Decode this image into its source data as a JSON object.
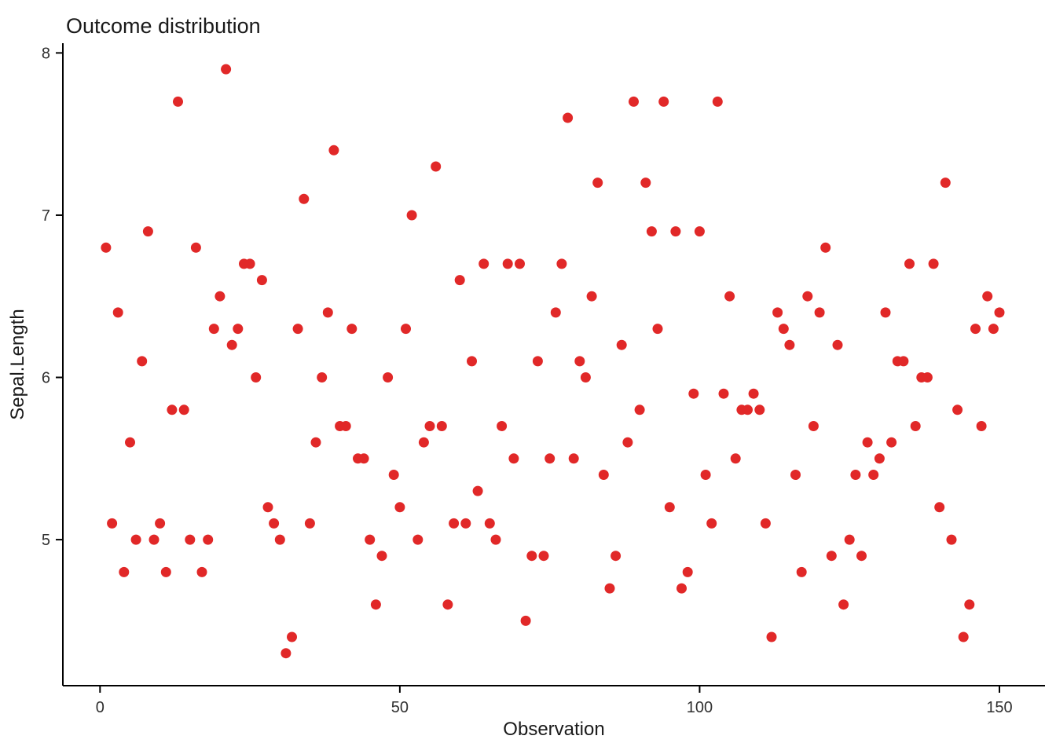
{
  "title": "Outcome distribution",
  "chart_data": {
    "type": "scatter",
    "title": "Outcome distribution",
    "xlabel": "Observation",
    "ylabel": "Sepal.Length",
    "xlim": [
      -6.2,
      157.6
    ],
    "ylim": [
      4.1,
      8.06
    ],
    "x_ticks": [
      0,
      50,
      100,
      150
    ],
    "x_tick_labels": [
      "0",
      "50",
      "100",
      "150"
    ],
    "y_ticks": [
      5,
      6,
      7,
      8
    ],
    "y_tick_labels": [
      "5",
      "6",
      "7",
      "8"
    ],
    "grid": false,
    "legend": false,
    "point_color": "#E12828",
    "point_radius": 6.5,
    "x": [
      1,
      2,
      3,
      4,
      5,
      6,
      7,
      8,
      9,
      10,
      11,
      12,
      13,
      14,
      15,
      16,
      17,
      18,
      19,
      20,
      21,
      22,
      23,
      24,
      25,
      26,
      27,
      28,
      29,
      30,
      31,
      32,
      33,
      34,
      35,
      36,
      37,
      38,
      39,
      40,
      41,
      42,
      43,
      44,
      45,
      46,
      47,
      48,
      49,
      50,
      51,
      52,
      53,
      54,
      55,
      56,
      57,
      58,
      59,
      60,
      61,
      62,
      63,
      64,
      65,
      66,
      67,
      68,
      69,
      70,
      71,
      72,
      73,
      74,
      75,
      76,
      77,
      78,
      79,
      80,
      81,
      82,
      83,
      84,
      85,
      86,
      87,
      88,
      89,
      90,
      91,
      92,
      93,
      94,
      95,
      96,
      97,
      98,
      99,
      100,
      101,
      102,
      103,
      104,
      105,
      106,
      107,
      108,
      109,
      110,
      111,
      112,
      113,
      114,
      115,
      116,
      117,
      118,
      119,
      120,
      121,
      122,
      123,
      124,
      125,
      126,
      127,
      128,
      129,
      130,
      131,
      132,
      133,
      134,
      135,
      136,
      137,
      138,
      139,
      140,
      141,
      142,
      143,
      144,
      145,
      146,
      147,
      148,
      149,
      150
    ],
    "y": [
      6.8,
      5.1,
      6.4,
      4.8,
      5.6,
      5.0,
      6.1,
      6.9,
      5.0,
      5.1,
      4.8,
      5.8,
      7.7,
      5.8,
      5.0,
      6.8,
      4.8,
      5.0,
      6.3,
      6.5,
      7.9,
      6.2,
      6.3,
      6.7,
      6.7,
      6.0,
      6.6,
      5.2,
      5.1,
      5.0,
      4.3,
      4.4,
      6.3,
      7.1,
      5.1,
      5.6,
      6.0,
      6.4,
      7.4,
      5.7,
      5.7,
      6.3,
      5.5,
      5.5,
      5.0,
      4.6,
      4.9,
      6.0,
      5.4,
      5.2,
      6.3,
      7.0,
      5.0,
      5.6,
      5.7,
      7.3,
      5.7,
      4.6,
      5.1,
      6.6,
      5.1,
      6.1,
      5.3,
      6.7,
      5.1,
      5.0,
      5.7,
      6.7,
      5.5,
      6.7,
      4.5,
      4.9,
      6.1,
      4.9,
      5.5,
      6.4,
      6.7,
      7.6,
      5.5,
      6.1,
      6.0,
      6.5,
      7.2,
      5.4,
      4.7,
      4.9,
      6.2,
      5.6,
      7.7,
      5.8,
      7.2,
      6.9,
      6.3,
      7.7,
      5.2,
      6.9,
      4.7,
      4.8,
      5.9,
      6.9,
      5.4,
      5.1,
      7.7,
      5.9,
      6.5,
      5.5,
      5.8,
      5.8,
      5.9,
      5.8,
      5.1,
      4.4,
      6.4,
      6.3,
      6.2,
      5.4,
      4.8,
      6.5,
      5.7,
      6.4,
      6.8,
      4.9,
      6.2,
      4.6,
      5.0,
      5.4,
      4.9,
      5.6,
      5.4,
      5.5,
      6.4,
      5.6,
      6.1,
      6.1,
      6.7,
      5.7,
      6.0,
      6.0,
      6.7,
      5.2,
      7.2,
      5.0,
      5.8,
      4.4,
      4.6,
      6.3,
      5.7,
      6.5,
      6.3,
      6.4
    ]
  }
}
